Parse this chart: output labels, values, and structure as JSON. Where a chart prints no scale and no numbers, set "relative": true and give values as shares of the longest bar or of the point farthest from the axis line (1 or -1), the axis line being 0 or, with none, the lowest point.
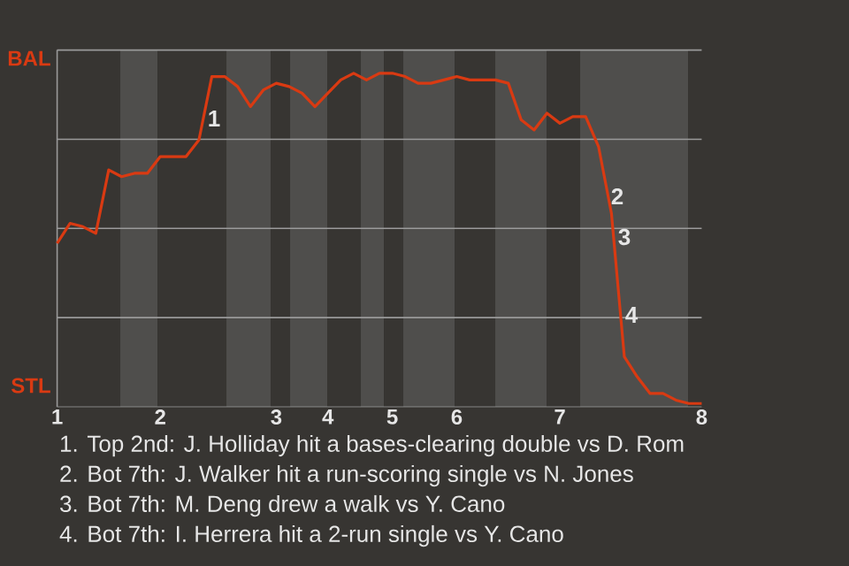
{
  "chart_data": {
    "type": "line",
    "relative": true,
    "categories": [
      "1",
      null,
      null,
      null,
      null,
      null,
      null,
      null,
      "2",
      null,
      null,
      null,
      null,
      null,
      null,
      null,
      null,
      "3",
      null,
      null,
      null,
      "4",
      null,
      null,
      null,
      null,
      "5",
      null,
      null,
      null,
      null,
      "6",
      null,
      null,
      null,
      null,
      null,
      null,
      null,
      "7",
      null,
      null,
      null,
      null,
      null,
      null,
      null,
      null,
      null,
      null,
      "8"
    ],
    "grid": "y",
    "series": [
      {
        "color": "#d93a12",
        "values": [
          0.49,
          0.55,
          0.54,
          0.52,
          0.71,
          0.69,
          0.7,
          0.7,
          0.75,
          0.75,
          0.75,
          0.8,
          0.99,
          0.99,
          0.96,
          0.9,
          0.95,
          0.97,
          0.96,
          0.94,
          0.9,
          0.94,
          0.98,
          1.0,
          0.98,
          1.0,
          1.0,
          0.99,
          0.97,
          0.97,
          0.98,
          0.99,
          0.98,
          0.98,
          0.98,
          0.97,
          0.86,
          0.83,
          0.88,
          0.85,
          0.87,
          0.87,
          0.78,
          0.58,
          0.15,
          0.09,
          0.04,
          0.04,
          0.02,
          0.01,
          0.01
        ]
      }
    ],
    "annotations": [
      "BAL",
      "STL",
      "1",
      "2",
      "3",
      "4",
      "1. Top 2nd: J. Holliday hit a bases-clearing double vs D. Rom",
      "2. Bot 7th: J. Walker hit a run-scoring single vs N. Jones",
      "3. Bot 7th: M. Deng drew a walk vs Y. Cano",
      "4. Bot 7th: I. Herrera hit a 2-run single vs Y. Cano"
    ]
  }
}
